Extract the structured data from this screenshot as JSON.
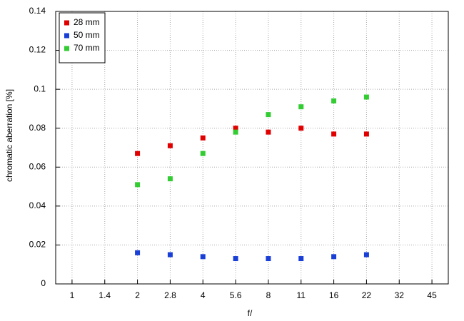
{
  "chart_data": {
    "type": "scatter",
    "x_label": "f/",
    "y_label": "chromatic  aberration [%]",
    "categories": [
      "1",
      "1.4",
      "2",
      "2.8",
      "4",
      "5.6",
      "8",
      "11",
      "16",
      "22",
      "32",
      "45"
    ],
    "series": [
      {
        "name": "28 mm",
        "color": "#e00000",
        "values": [
          null,
          null,
          0.067,
          0.071,
          0.075,
          0.08,
          0.078,
          0.08,
          0.077,
          0.077,
          null,
          null
        ]
      },
      {
        "name": "50 mm",
        "color": "#1a3fd6",
        "values": [
          null,
          null,
          0.016,
          0.015,
          0.014,
          0.013,
          0.013,
          0.013,
          0.014,
          0.015,
          null,
          null
        ]
      },
      {
        "name": "70 mm",
        "color": "#33cc33",
        "values": [
          null,
          null,
          0.051,
          0.054,
          0.067,
          0.078,
          0.087,
          0.091,
          0.094,
          0.096,
          null,
          null
        ]
      }
    ],
    "ylim": [
      0,
      0.14
    ],
    "yticks": [
      0,
      0.02,
      0.04,
      0.06,
      0.08,
      0.1,
      0.12,
      0.14
    ],
    "grid": true,
    "legend": "upper-left"
  }
}
